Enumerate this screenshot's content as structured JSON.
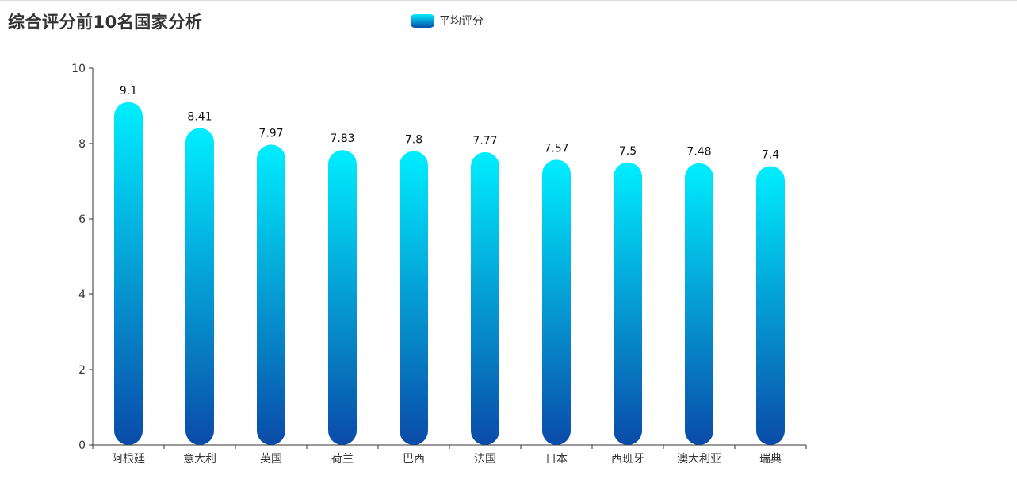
{
  "chart_data": {
    "type": "bar",
    "title": "综合评分前10名国家分析",
    "categories": [
      "阿根廷",
      "意大利",
      "英国",
      "荷兰",
      "巴西",
      "法国",
      "日本",
      "西班牙",
      "澳大利亚",
      "瑞典"
    ],
    "series": [
      {
        "name": "平均评分",
        "values": [
          9.1,
          8.41,
          7.97,
          7.83,
          7.8,
          7.77,
          7.57,
          7.5,
          7.48,
          7.4
        ]
      }
    ],
    "value_labels": [
      "9.1",
      "8.41",
      "7.97",
      "7.83",
      "7.8",
      "7.77",
      "7.57",
      "7.5",
      "7.48",
      "7.4"
    ],
    "ylim": [
      0,
      10
    ],
    "yticks": [
      "0",
      "2",
      "4",
      "6",
      "8",
      "10"
    ],
    "xlabel": "",
    "ylabel": "",
    "grid": false,
    "legend_position": "top-center",
    "colors": {
      "bar_top": "#00eeff",
      "bar_bottom": "#0a4ba8",
      "axis": "#333333",
      "text": "#333333"
    }
  }
}
